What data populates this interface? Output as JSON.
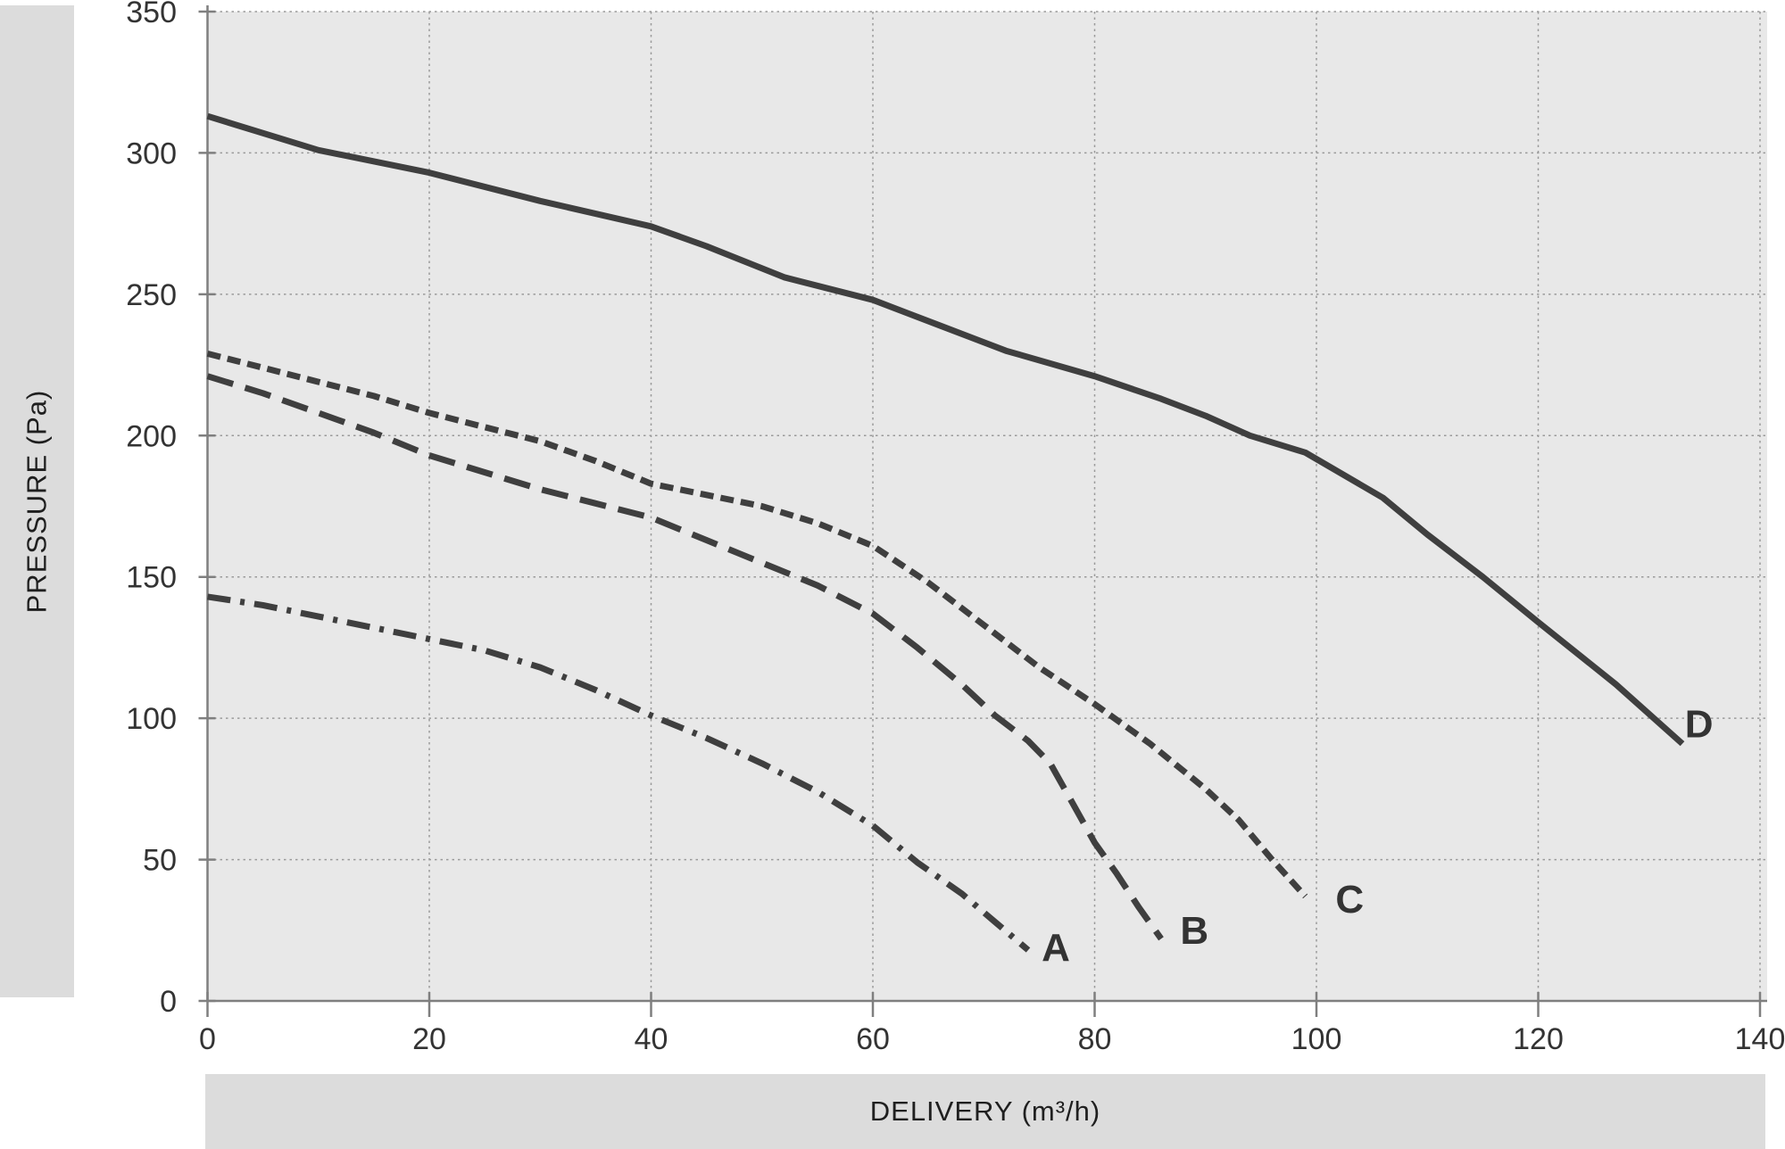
{
  "colors": {
    "page_bg": "#ffffff",
    "plot_bg": "#e8e8e8",
    "strip_bg": "#dcdcdc",
    "curve": "#3f3f3f",
    "grid": "#9a9a9a",
    "axis": "#7f7f7f",
    "tick_text": "#333333",
    "curve_label_text": "#333333"
  },
  "chart_data": {
    "type": "line",
    "title": "",
    "xlabel": "DELIVERY (m³/h)",
    "ylabel": "PRESSURE (Pa)",
    "xlim": [
      0,
      140
    ],
    "ylim": [
      0,
      350
    ],
    "xticks": [
      0,
      20,
      40,
      60,
      80,
      100,
      120,
      140
    ],
    "yticks": [
      0,
      50,
      100,
      150,
      200,
      250,
      300,
      350
    ],
    "grid": true,
    "grid_style": "dotted",
    "legend_position": "inline-end-labels",
    "series": [
      {
        "name": "A",
        "style": "dash-dot",
        "label_at": [
          76.5,
          19
        ],
        "points": [
          [
            0,
            143
          ],
          [
            5,
            140
          ],
          [
            10,
            136
          ],
          [
            15,
            132
          ],
          [
            20,
            128
          ],
          [
            25,
            124
          ],
          [
            30,
            118
          ],
          [
            35,
            110
          ],
          [
            40,
            101
          ],
          [
            45,
            93
          ],
          [
            50,
            84
          ],
          [
            55,
            74
          ],
          [
            60,
            62
          ],
          [
            64,
            49
          ],
          [
            68,
            38
          ],
          [
            71,
            28
          ],
          [
            74,
            18
          ]
        ]
      },
      {
        "name": "B",
        "style": "long-dash",
        "label_at": [
          89,
          25
        ],
        "points": [
          [
            0,
            221
          ],
          [
            5,
            215
          ],
          [
            10,
            208
          ],
          [
            15,
            201
          ],
          [
            20,
            193
          ],
          [
            25,
            187
          ],
          [
            30,
            181
          ],
          [
            35,
            176
          ],
          [
            40,
            171
          ],
          [
            45,
            163
          ],
          [
            50,
            155
          ],
          [
            55,
            147
          ],
          [
            60,
            137
          ],
          [
            64,
            125
          ],
          [
            68,
            112
          ],
          [
            71,
            101
          ],
          [
            74,
            92
          ],
          [
            76,
            84
          ],
          [
            78,
            70
          ],
          [
            80,
            56
          ],
          [
            82,
            45
          ],
          [
            84,
            33
          ],
          [
            86,
            22
          ]
        ]
      },
      {
        "name": "C",
        "style": "short-dash",
        "label_at": [
          103,
          36
        ],
        "points": [
          [
            0,
            229
          ],
          [
            5,
            224
          ],
          [
            10,
            219
          ],
          [
            15,
            214
          ],
          [
            20,
            208
          ],
          [
            25,
            203
          ],
          [
            30,
            198
          ],
          [
            35,
            191
          ],
          [
            40,
            183
          ],
          [
            45,
            179
          ],
          [
            50,
            175
          ],
          [
            55,
            169
          ],
          [
            60,
            161
          ],
          [
            65,
            148
          ],
          [
            70,
            133
          ],
          [
            75,
            118
          ],
          [
            80,
            105
          ],
          [
            85,
            91
          ],
          [
            90,
            75
          ],
          [
            93,
            64
          ],
          [
            96,
            50
          ],
          [
            99,
            37
          ]
        ]
      },
      {
        "name": "D",
        "style": "solid",
        "label_at": [
          134.5,
          98
        ],
        "points": [
          [
            0,
            313
          ],
          [
            10,
            301
          ],
          [
            20,
            293
          ],
          [
            30,
            283
          ],
          [
            40,
            274
          ],
          [
            45,
            267
          ],
          [
            52,
            256
          ],
          [
            60,
            248
          ],
          [
            66,
            239
          ],
          [
            72,
            230
          ],
          [
            80,
            221
          ],
          [
            86,
            213
          ],
          [
            90,
            207
          ],
          [
            94,
            200
          ],
          [
            99,
            194
          ],
          [
            106,
            178
          ],
          [
            110,
            165
          ],
          [
            115,
            150
          ],
          [
            120,
            134
          ],
          [
            127,
            112
          ],
          [
            133,
            91
          ]
        ]
      }
    ]
  }
}
